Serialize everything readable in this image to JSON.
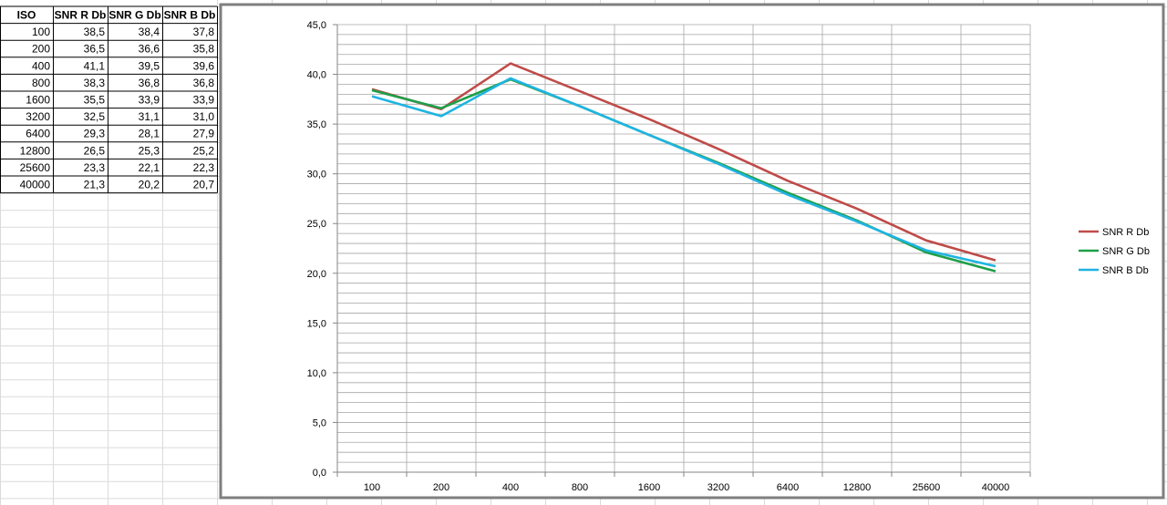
{
  "table": {
    "headers": [
      "ISO",
      "SNR R Db",
      "SNR G Db",
      "SNR B Db"
    ],
    "rows": [
      [
        "100",
        "38,5",
        "38,4",
        "37,8"
      ],
      [
        "200",
        "36,5",
        "36,6",
        "35,8"
      ],
      [
        "400",
        "41,1",
        "39,5",
        "39,6"
      ],
      [
        "800",
        "38,3",
        "36,8",
        "36,8"
      ],
      [
        "1600",
        "35,5",
        "33,9",
        "33,9"
      ],
      [
        "3200",
        "32,5",
        "31,1",
        "31,0"
      ],
      [
        "6400",
        "29,3",
        "28,1",
        "27,9"
      ],
      [
        "12800",
        "26,5",
        "25,3",
        "25,2"
      ],
      [
        "25600",
        "23,3",
        "22,1",
        "22,3"
      ],
      [
        "40000",
        "21,3",
        "20,2",
        "20,7"
      ]
    ]
  },
  "chart_data": {
    "type": "line",
    "categories": [
      "100",
      "200",
      "400",
      "800",
      "1600",
      "3200",
      "6400",
      "12800",
      "25600",
      "40000"
    ],
    "series": [
      {
        "name": "SNR R Db",
        "color": "#be4b48",
        "values": [
          38.5,
          36.5,
          41.1,
          38.3,
          35.5,
          32.5,
          29.3,
          26.5,
          23.3,
          21.3
        ]
      },
      {
        "name": "SNR G Db",
        "color": "#1e9f48",
        "values": [
          38.4,
          36.6,
          39.5,
          36.8,
          33.9,
          31.1,
          28.1,
          25.3,
          22.1,
          20.2
        ]
      },
      {
        "name": "SNR B Db",
        "color": "#1fb4e2",
        "values": [
          37.8,
          35.8,
          39.6,
          36.8,
          33.9,
          31.0,
          27.9,
          25.2,
          22.3,
          20.7
        ]
      }
    ],
    "y_ticks": [
      "0,0",
      "5,0",
      "10,0",
      "15,0",
      "20,0",
      "25,0",
      "30,0",
      "35,0",
      "40,0",
      "45,0"
    ],
    "ylim": [
      0,
      45
    ],
    "y_minor_step": 1,
    "grid": true,
    "legend": "right",
    "title": "",
    "xlabel": "",
    "ylabel": ""
  }
}
